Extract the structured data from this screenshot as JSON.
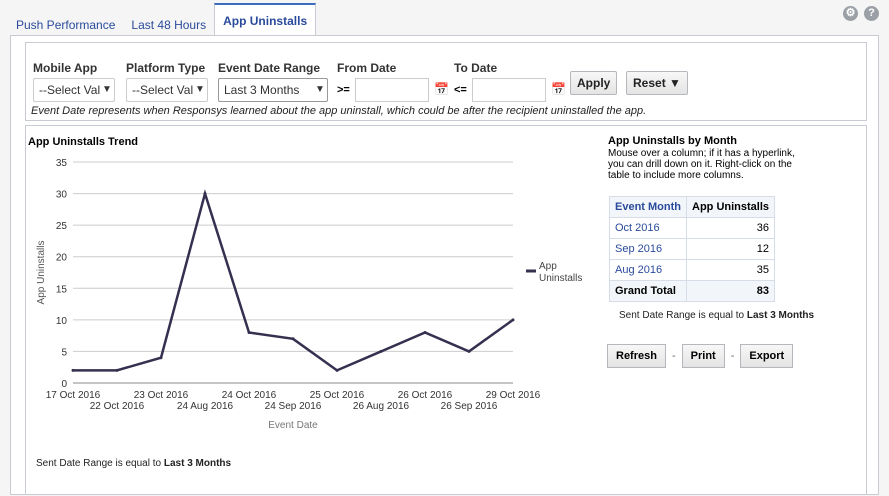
{
  "tabs": [
    "Push Performance",
    "Last 48 Hours",
    "App Uninstalls"
  ],
  "filters": {
    "mobile_app": {
      "label": "Mobile App",
      "value": "--Select Valu"
    },
    "platform_type": {
      "label": "Platform Type",
      "value": "--Select Valu"
    },
    "event_date_range": {
      "label": "Event Date Range",
      "value": "Last 3 Months"
    },
    "from_date": {
      "label": "From Date",
      "op": ">=",
      "value": ""
    },
    "to_date": {
      "label": "To Date",
      "op": "<=",
      "value": ""
    },
    "apply": "Apply",
    "reset": "Reset ▼",
    "note": "Event Date represents when Responsys learned about the app uninstall, which could be after the recipient uninstalled the app."
  },
  "chart_data": {
    "type": "line",
    "title": "App Uninstalls Trend",
    "xlabel": "Event Date",
    "ylabel": "App Uninstalls",
    "categories": [
      "17 Oct 2016",
      "22 Oct 2016",
      "23 Oct 2016",
      "24 Aug 2016",
      "24 Oct 2016",
      "24 Sep 2016",
      "25 Oct 2016",
      "26 Aug 2016",
      "26 Oct 2016",
      "26 Sep 2016",
      "29 Oct 2016"
    ],
    "series": [
      {
        "name": "App Uninstalls",
        "values": [
          2,
          2,
          4,
          30,
          8,
          7,
          2,
          5,
          8,
          5,
          10
        ],
        "color": "#34304f"
      }
    ],
    "ylim": [
      0,
      35
    ],
    "yticks": [
      0,
      5,
      10,
      15,
      20,
      25,
      30,
      35
    ],
    "grid": true,
    "legend": "right"
  },
  "chart_filter": {
    "text": "Sent Date Range is equal to",
    "value": "Last 3 Months"
  },
  "table": {
    "title": "App Uninstalls by Month",
    "desc": "Mouse over a column; if it has a hyperlink, you can drill down on it. Right-click on the table to include more columns.",
    "headers": [
      "Event Month",
      "App Uninstalls"
    ],
    "rows": [
      [
        "Oct 2016",
        "36"
      ],
      [
        "Sep 2016",
        "12"
      ],
      [
        "Aug 2016",
        "35"
      ]
    ],
    "total": [
      "Grand Total",
      "83"
    ],
    "filter_text": "Sent Date Range is equal to",
    "filter_value": "Last 3 Months"
  },
  "actions": {
    "refresh": "Refresh",
    "print": "Print",
    "export": "Export",
    "sep": "-"
  }
}
